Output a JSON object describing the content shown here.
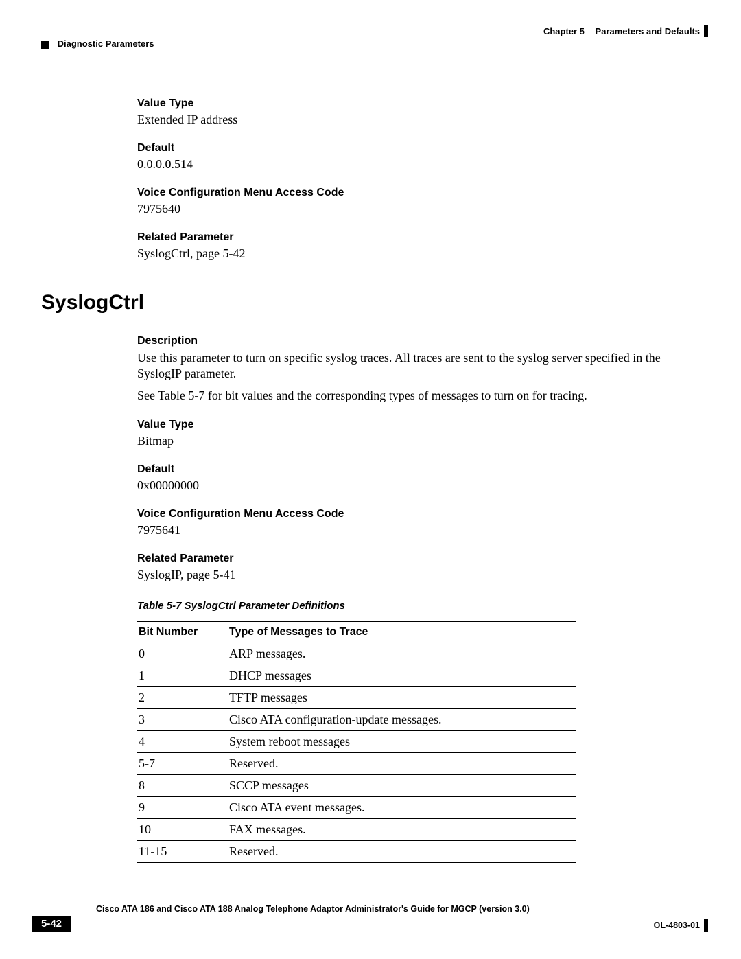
{
  "header": {
    "chapter_label": "Chapter 5",
    "chapter_title": "Parameters and Defaults",
    "section": "Diagnostic Parameters"
  },
  "section1": {
    "value_type_label": "Value Type",
    "value_type": "Extended IP address",
    "default_label": "Default",
    "default": "0.0.0.0.514",
    "vcmac_label": "Voice Configuration Menu Access Code",
    "vcmac": "7975640",
    "related_label": "Related Parameter",
    "related": "SyslogCtrl, page 5-42"
  },
  "heading": "SyslogCtrl",
  "section2": {
    "description_label": "Description",
    "description_p1": "Use this parameter to turn on specific syslog traces. All traces are sent to the syslog server specified in the SyslogIP parameter.",
    "description_p2": "See Table 5-7 for bit values and the corresponding types of messages to turn on for tracing.",
    "value_type_label": "Value Type",
    "value_type": "Bitmap",
    "default_label": "Default",
    "default": "0x00000000",
    "vcmac_label": "Voice Configuration Menu Access Code",
    "vcmac": "7975641",
    "related_label": "Related Parameter",
    "related": "SyslogIP, page 5-41"
  },
  "table": {
    "caption": "Table 5-7    SyslogCtrl Parameter Definitions",
    "columns": [
      "Bit Number",
      "Type of Messages to Trace"
    ],
    "rows": [
      [
        "0",
        "ARP messages."
      ],
      [
        "1",
        "DHCP messages"
      ],
      [
        "2",
        "TFTP messages"
      ],
      [
        "3",
        "Cisco ATA configuration-update messages."
      ],
      [
        "4",
        "System reboot messages"
      ],
      [
        "5-7",
        "Reserved."
      ],
      [
        "8",
        "SCCP messages"
      ],
      [
        "9",
        "Cisco ATA event messages."
      ],
      [
        "10",
        "FAX messages."
      ],
      [
        "11-15",
        "Reserved."
      ]
    ]
  },
  "footer": {
    "title": "Cisco ATA 186 and Cisco ATA 188 Analog Telephone Adaptor Administrator's Guide for MGCP (version 3.0)",
    "page": "5-42",
    "doc_id": "OL-4803-01"
  }
}
